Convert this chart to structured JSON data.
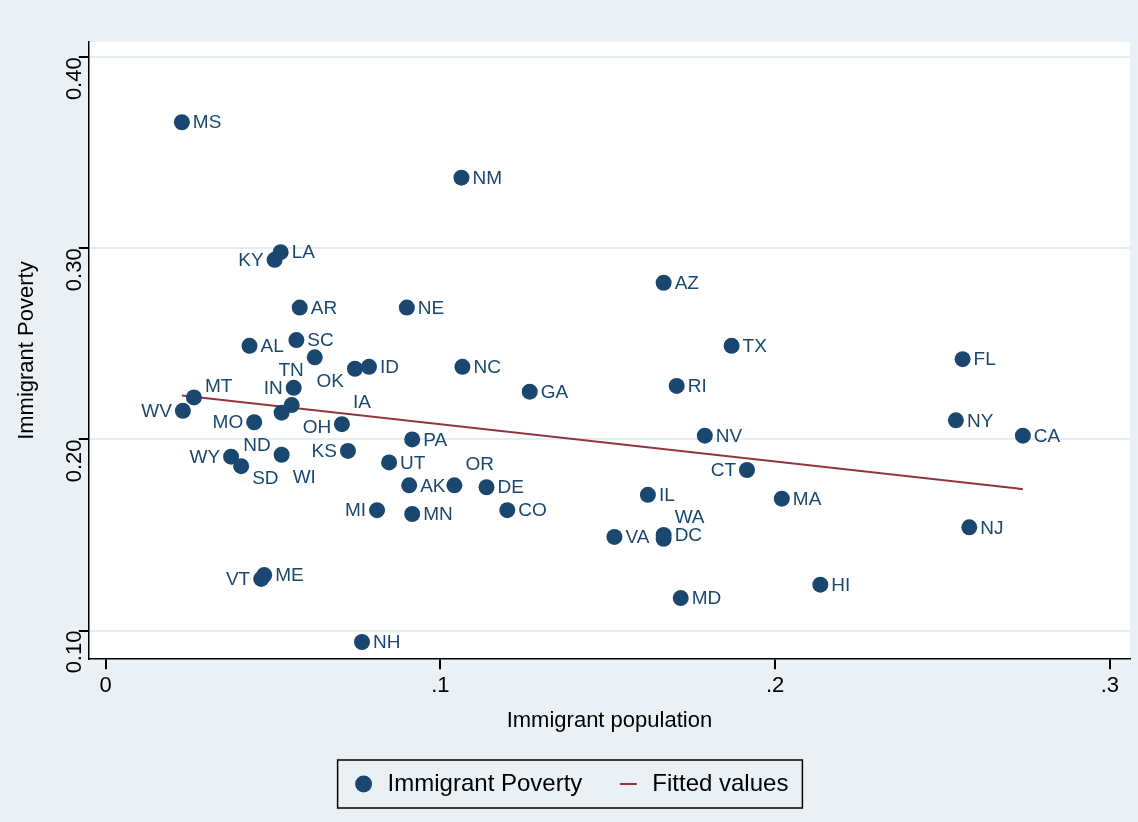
{
  "chart_data": {
    "type": "scatter",
    "xlabel": "Immigrant population",
    "ylabel": "Immigrant Poverty",
    "xlim": [
      -0.005,
      0.306
    ],
    "ylim": [
      0.085,
      0.408
    ],
    "xticks": [
      0,
      {
        "value": 0.1,
        "label": ".1"
      },
      {
        "value": 0.2,
        "label": ".2"
      },
      {
        "value": 0.3,
        "label": ".3"
      }
    ],
    "yticks": [
      {
        "value": 0.1,
        "label": "0.10"
      },
      {
        "value": 0.2,
        "label": "0.20"
      },
      {
        "value": 0.3,
        "label": "0.30"
      },
      {
        "value": 0.4,
        "label": "0.40"
      }
    ],
    "grid": "y",
    "legend": "bottom",
    "marker": "circle",
    "series": [
      {
        "name": "Immigrant Poverty",
        "color": "#1a476f",
        "x": [
          0.0228,
          0.1063,
          0.0523,
          0.0505,
          0.058,
          0.09,
          0.043,
          0.057,
          0.0625,
          0.0745,
          0.0787,
          0.1066,
          0.1267,
          0.1667,
          0.187,
          0.256,
          0.1706,
          0.254,
          0.274,
          0.179,
          0.1916,
          0.202,
          0.162,
          0.258,
          0.152,
          0.1667,
          0.1667,
          0.1718,
          0.2135,
          0.0264,
          0.0231,
          0.0562,
          0.0556,
          0.0526,
          0.0444,
          0.0706,
          0.0916,
          0.0724,
          0.0847,
          0.0375,
          0.0405,
          0.0526,
          0.0907,
          0.1042,
          0.1138,
          0.0811,
          0.0916,
          0.12,
          0.0474,
          0.0465,
          0.0766
        ],
        "values": [
          0.366,
          0.337,
          0.298,
          0.294,
          0.269,
          0.269,
          0.249,
          0.252,
          0.243,
          0.237,
          0.238,
          0.238,
          0.225,
          0.282,
          0.249,
          0.242,
          0.228,
          0.21,
          0.202,
          0.202,
          0.184,
          0.169,
          0.171,
          0.154,
          0.149,
          0.15,
          0.148,
          0.117,
          0.124,
          0.222,
          0.215,
          0.227,
          0.218,
          0.214,
          0.209,
          0.208,
          0.2,
          0.194,
          0.188,
          0.191,
          0.186,
          0.192,
          0.176,
          0.176,
          0.175,
          0.163,
          0.161,
          0.163,
          0.129,
          0.127,
          0.094
        ]
      },
      {
        "name": "Fitted values",
        "type": "line",
        "color": "#90353b",
        "marker": "none",
        "line_style": "solid",
        "x": [
          0.0228,
          0.274
        ],
        "values": [
          0.223,
          0.174
        ]
      }
    ],
    "annotations": [
      {
        "text": "MS",
        "x": 0.0228,
        "y": 0.366
      },
      {
        "text": "NM",
        "x": 0.1063,
        "y": 0.337
      },
      {
        "text": "LA",
        "x": 0.0523,
        "y": 0.298
      },
      {
        "text": "KY",
        "x": 0.0505,
        "y": 0.294
      },
      {
        "text": "AR",
        "x": 0.058,
        "y": 0.269
      },
      {
        "text": "NE",
        "x": 0.09,
        "y": 0.269
      },
      {
        "text": "AL",
        "x": 0.043,
        "y": 0.249
      },
      {
        "text": "SC",
        "x": 0.057,
        "y": 0.252
      },
      {
        "text": "TN",
        "x": 0.0625,
        "y": 0.243
      },
      {
        "text": "OK",
        "x": 0.0745,
        "y": 0.237
      },
      {
        "text": "ID",
        "x": 0.0787,
        "y": 0.238
      },
      {
        "text": "NC",
        "x": 0.1066,
        "y": 0.238
      },
      {
        "text": "GA",
        "x": 0.1267,
        "y": 0.225
      },
      {
        "text": "AZ",
        "x": 0.1667,
        "y": 0.282
      },
      {
        "text": "TX",
        "x": 0.187,
        "y": 0.249
      },
      {
        "text": "FL",
        "x": 0.256,
        "y": 0.242
      },
      {
        "text": "RI",
        "x": 0.1706,
        "y": 0.228
      },
      {
        "text": "NY",
        "x": 0.254,
        "y": 0.21
      },
      {
        "text": "CA",
        "x": 0.274,
        "y": 0.202
      },
      {
        "text": "NV",
        "x": 0.179,
        "y": 0.202
      },
      {
        "text": "CT",
        "x": 0.1916,
        "y": 0.184
      },
      {
        "text": "MA",
        "x": 0.202,
        "y": 0.169
      },
      {
        "text": "IL",
        "x": 0.162,
        "y": 0.171
      },
      {
        "text": "NJ",
        "x": 0.258,
        "y": 0.154
      },
      {
        "text": "VA",
        "x": 0.152,
        "y": 0.149
      },
      {
        "text": "DC",
        "x": 0.1667,
        "y": 0.15
      },
      {
        "text": "WA",
        "x": 0.1667,
        "y": 0.148
      },
      {
        "text": "MD",
        "x": 0.1718,
        "y": 0.117
      },
      {
        "text": "HI",
        "x": 0.2135,
        "y": 0.124
      },
      {
        "text": "MT",
        "x": 0.0264,
        "y": 0.222
      },
      {
        "text": "WV",
        "x": 0.0231,
        "y": 0.215
      },
      {
        "text": "IN",
        "x": 0.0562,
        "y": 0.227
      },
      {
        "text": "OH",
        "x": 0.0556,
        "y": 0.218
      },
      {
        "text": "ND",
        "x": 0.0526,
        "y": 0.214
      },
      {
        "text": "MO",
        "x": 0.0444,
        "y": 0.209
      },
      {
        "text": "IA",
        "x": 0.0706,
        "y": 0.208
      },
      {
        "text": "PA",
        "x": 0.0916,
        "y": 0.2
      },
      {
        "text": "KS",
        "x": 0.0724,
        "y": 0.194
      },
      {
        "text": "UT",
        "x": 0.0847,
        "y": 0.188
      },
      {
        "text": "WY",
        "x": 0.0375,
        "y": 0.191
      },
      {
        "text": "SD",
        "x": 0.0405,
        "y": 0.186
      },
      {
        "text": "WI",
        "x": 0.0526,
        "y": 0.192
      },
      {
        "text": "AK",
        "x": 0.0907,
        "y": 0.176
      },
      {
        "text": "OR",
        "x": 0.1042,
        "y": 0.176
      },
      {
        "text": "DE",
        "x": 0.1138,
        "y": 0.175
      },
      {
        "text": "MI",
        "x": 0.0811,
        "y": 0.163
      },
      {
        "text": "MN",
        "x": 0.0916,
        "y": 0.161
      },
      {
        "text": "CO",
        "x": 0.12,
        "y": 0.163
      },
      {
        "text": "ME",
        "x": 0.0474,
        "y": 0.129
      },
      {
        "text": "VT",
        "x": 0.0465,
        "y": 0.127
      },
      {
        "text": "NH",
        "x": 0.0766,
        "y": 0.094
      }
    ]
  }
}
